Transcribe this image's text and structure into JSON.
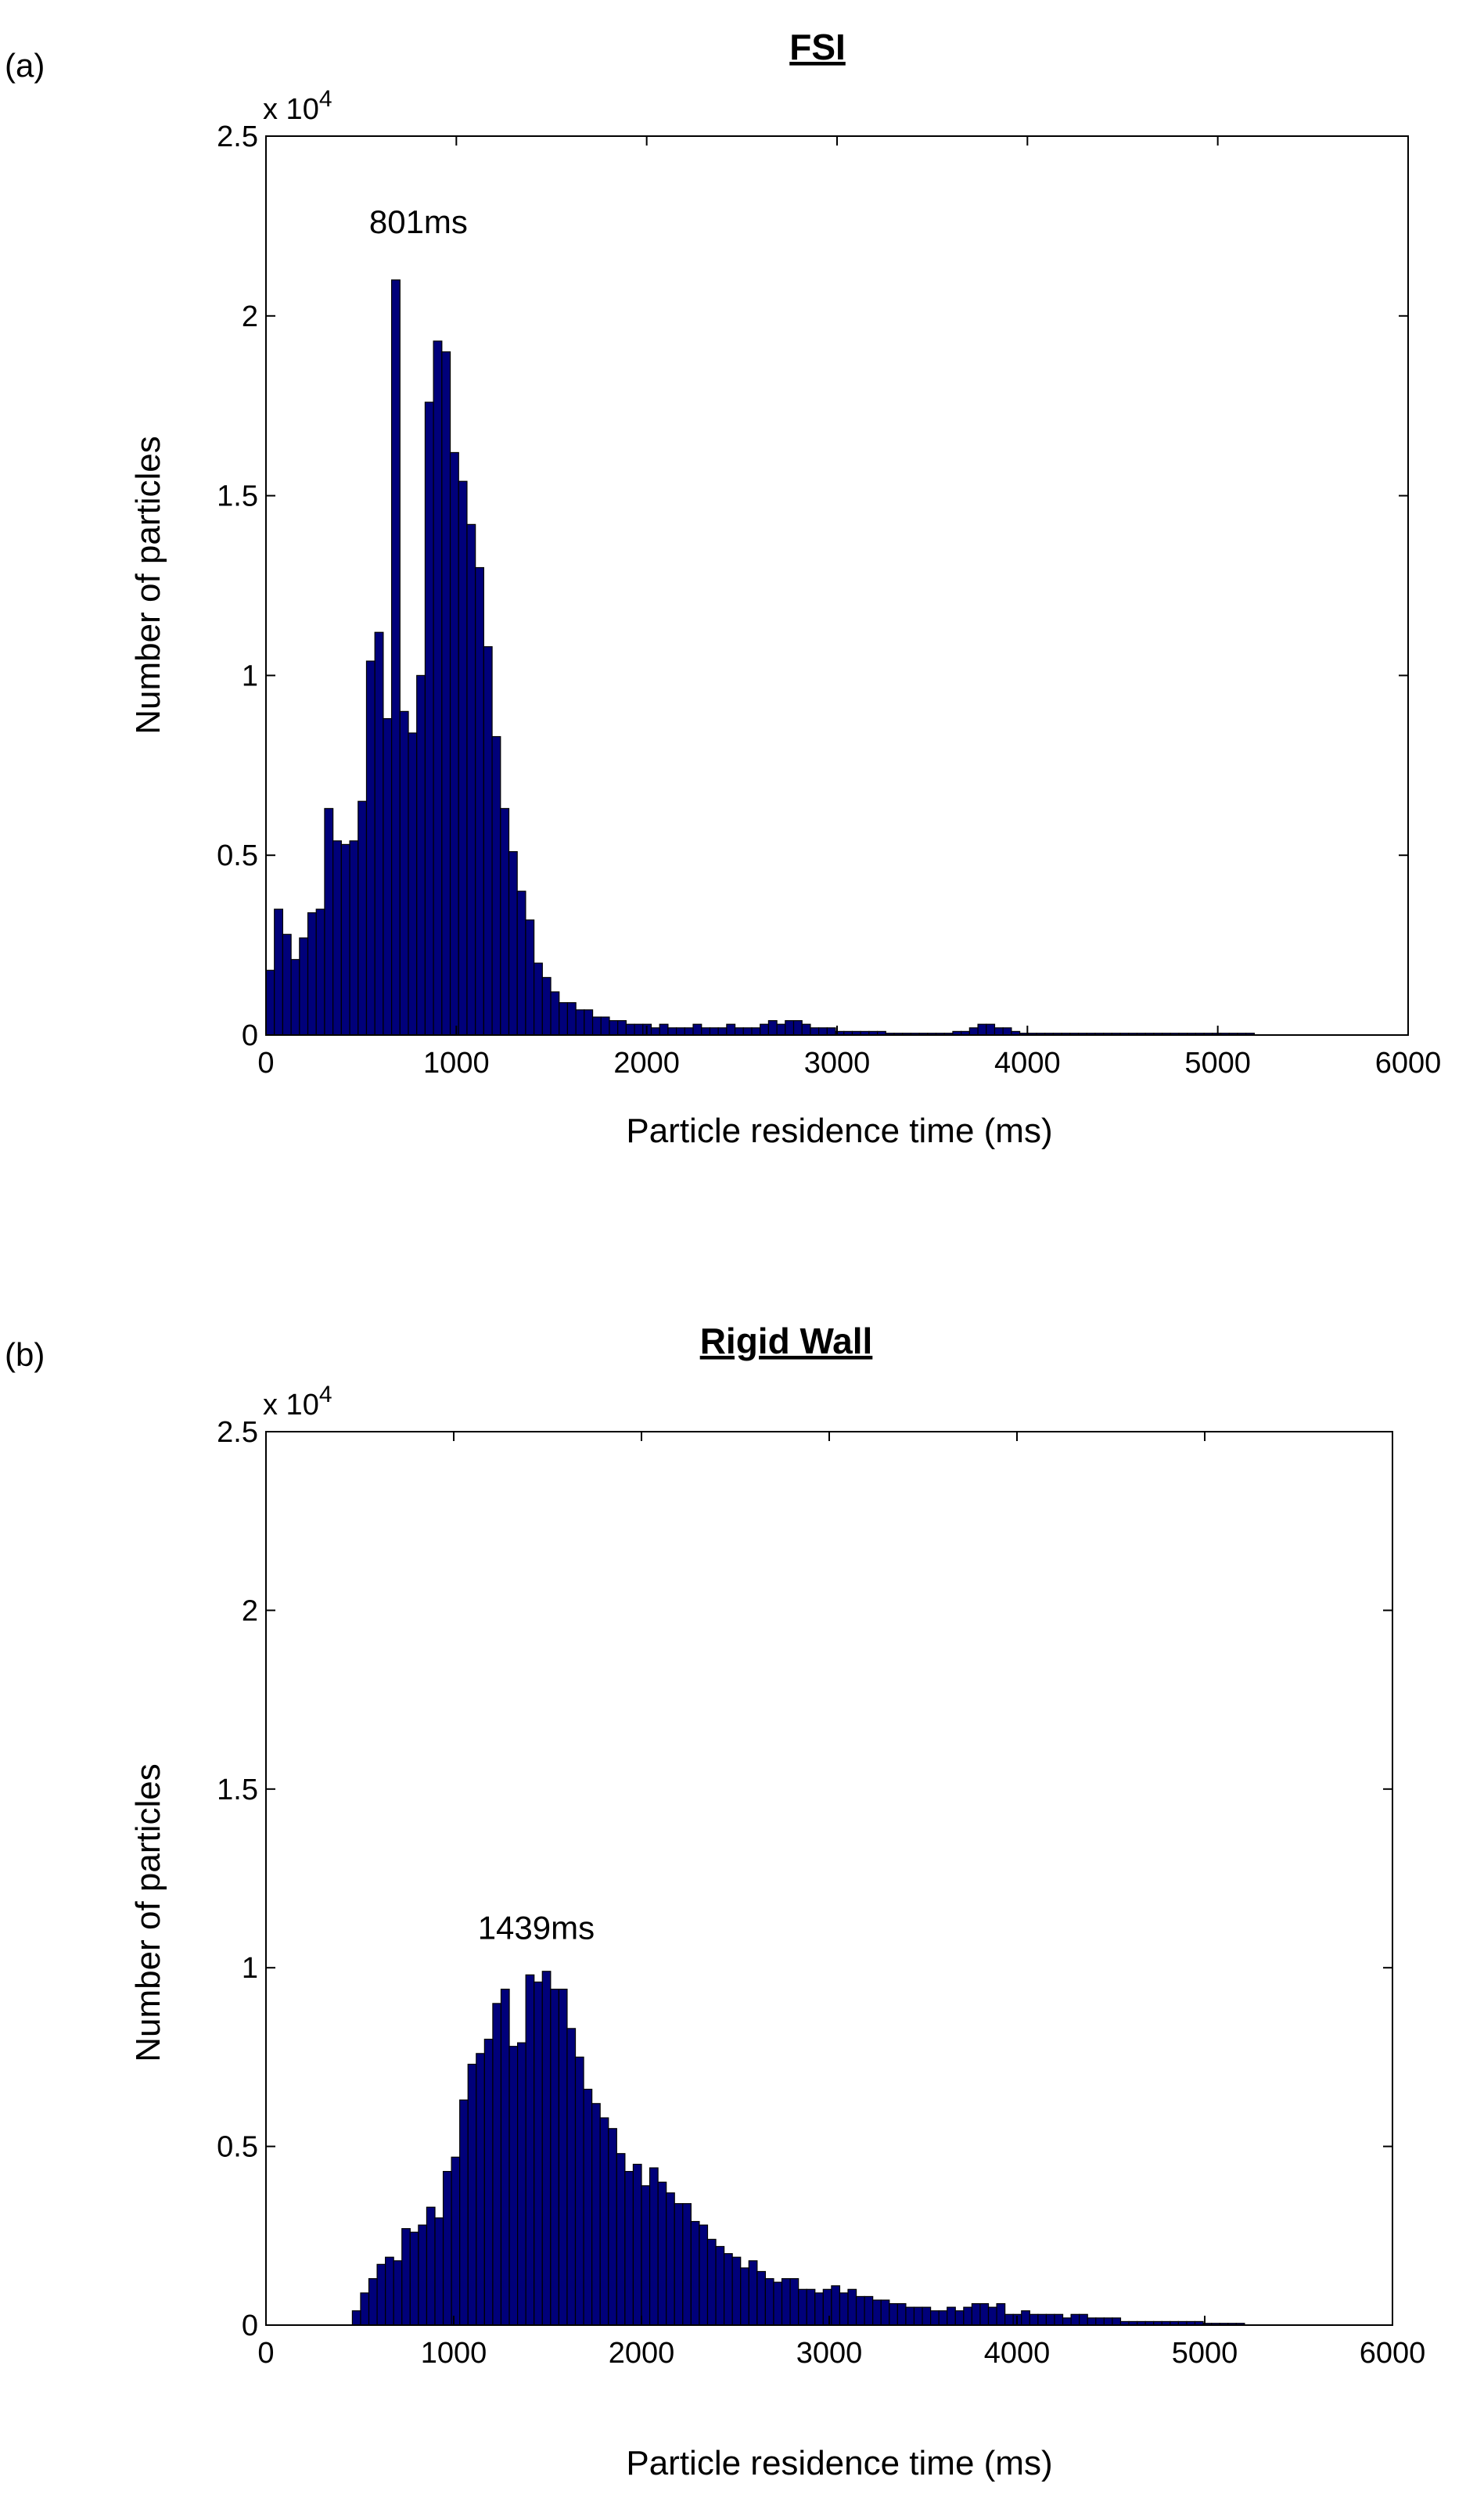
{
  "chart_data": [
    {
      "type": "bar",
      "panel_label": "(a)",
      "title": "FSI",
      "xlabel": "Particle residence time (ms)",
      "ylabel": "Number of particles",
      "xlim": [
        0,
        6000
      ],
      "ylim": [
        0,
        25000
      ],
      "grid": false,
      "x_ticks": [
        "0",
        "1000",
        "2000",
        "3000",
        "4000",
        "5000",
        "6000"
      ],
      "y_ticks": [
        "0",
        "0.5",
        "1",
        "1.5",
        "2",
        "2.5"
      ],
      "y_multiplier": {
        "base": "x 10",
        "exp": "4"
      },
      "bar_color": "#00007a",
      "bin_start": 0,
      "bin_width": 44,
      "values": [
        1800,
        3500,
        2800,
        2100,
        2700,
        3400,
        3500,
        6300,
        5400,
        5300,
        5400,
        6500,
        10400,
        11200,
        8800,
        21000,
        9000,
        8400,
        10000,
        17600,
        19300,
        19000,
        16200,
        15400,
        14200,
        13000,
        10800,
        8300,
        6300,
        5100,
        4000,
        3200,
        2000,
        1600,
        1200,
        900,
        900,
        700,
        700,
        500,
        500,
        400,
        400,
        300,
        300,
        300,
        200,
        300,
        200,
        200,
        200,
        300,
        200,
        200,
        200,
        300,
        200,
        200,
        200,
        300,
        400,
        300,
        400,
        400,
        300,
        200,
        200,
        200,
        100,
        100,
        100,
        100,
        100,
        100,
        50,
        50,
        50,
        50,
        50,
        50,
        50,
        50,
        100,
        100,
        200,
        300,
        300,
        200,
        200,
        100,
        50,
        50,
        50,
        50,
        50,
        50,
        50,
        50,
        50,
        50,
        50,
        50,
        50,
        50,
        50,
        50,
        50,
        50,
        50,
        50,
        50,
        50,
        50,
        50,
        50,
        50,
        50,
        50
      ],
      "annotation": {
        "text": "801ms",
        "x": 801,
        "y": 22300
      }
    },
    {
      "type": "bar",
      "panel_label": "(b)",
      "title": "Rigid Wall",
      "xlabel": "Particle residence time (ms)",
      "ylabel": "Number of particles",
      "xlim": [
        0,
        6000
      ],
      "ylim": [
        0,
        25000
      ],
      "grid": false,
      "x_ticks": [
        "0",
        "1000",
        "2000",
        "3000",
        "4000",
        "5000",
        "6000"
      ],
      "y_ticks": [
        "0",
        "0.5",
        "1",
        "1.5",
        "2",
        "2.5"
      ],
      "y_multiplier": {
        "base": "x 10",
        "exp": "4"
      },
      "bar_color": "#00007a",
      "bin_start": 460,
      "bin_width": 44,
      "values": [
        400,
        900,
        1300,
        1700,
        1900,
        1800,
        2700,
        2600,
        2800,
        3300,
        3000,
        4300,
        4700,
        6300,
        7300,
        7600,
        8000,
        9000,
        9400,
        7800,
        7900,
        9800,
        9600,
        9900,
        9400,
        9400,
        8300,
        7500,
        6600,
        6200,
        5800,
        5500,
        4800,
        4300,
        4500,
        3900,
        4400,
        4000,
        3700,
        3400,
        3400,
        2900,
        2800,
        2400,
        2200,
        2000,
        1900,
        1600,
        1800,
        1500,
        1300,
        1200,
        1300,
        1300,
        1000,
        1000,
        900,
        1000,
        1100,
        900,
        1000,
        800,
        800,
        700,
        700,
        600,
        600,
        500,
        500,
        500,
        400,
        400,
        500,
        400,
        500,
        600,
        600,
        500,
        600,
        300,
        300,
        400,
        300,
        300,
        300,
        300,
        200,
        300,
        300,
        200,
        200,
        200,
        200,
        100,
        100,
        100,
        100,
        100,
        100,
        100,
        100,
        100,
        100,
        50,
        50,
        50,
        50,
        50
      ],
      "annotation": {
        "text": "1439ms",
        "x": 1439,
        "y": 10800
      }
    }
  ]
}
